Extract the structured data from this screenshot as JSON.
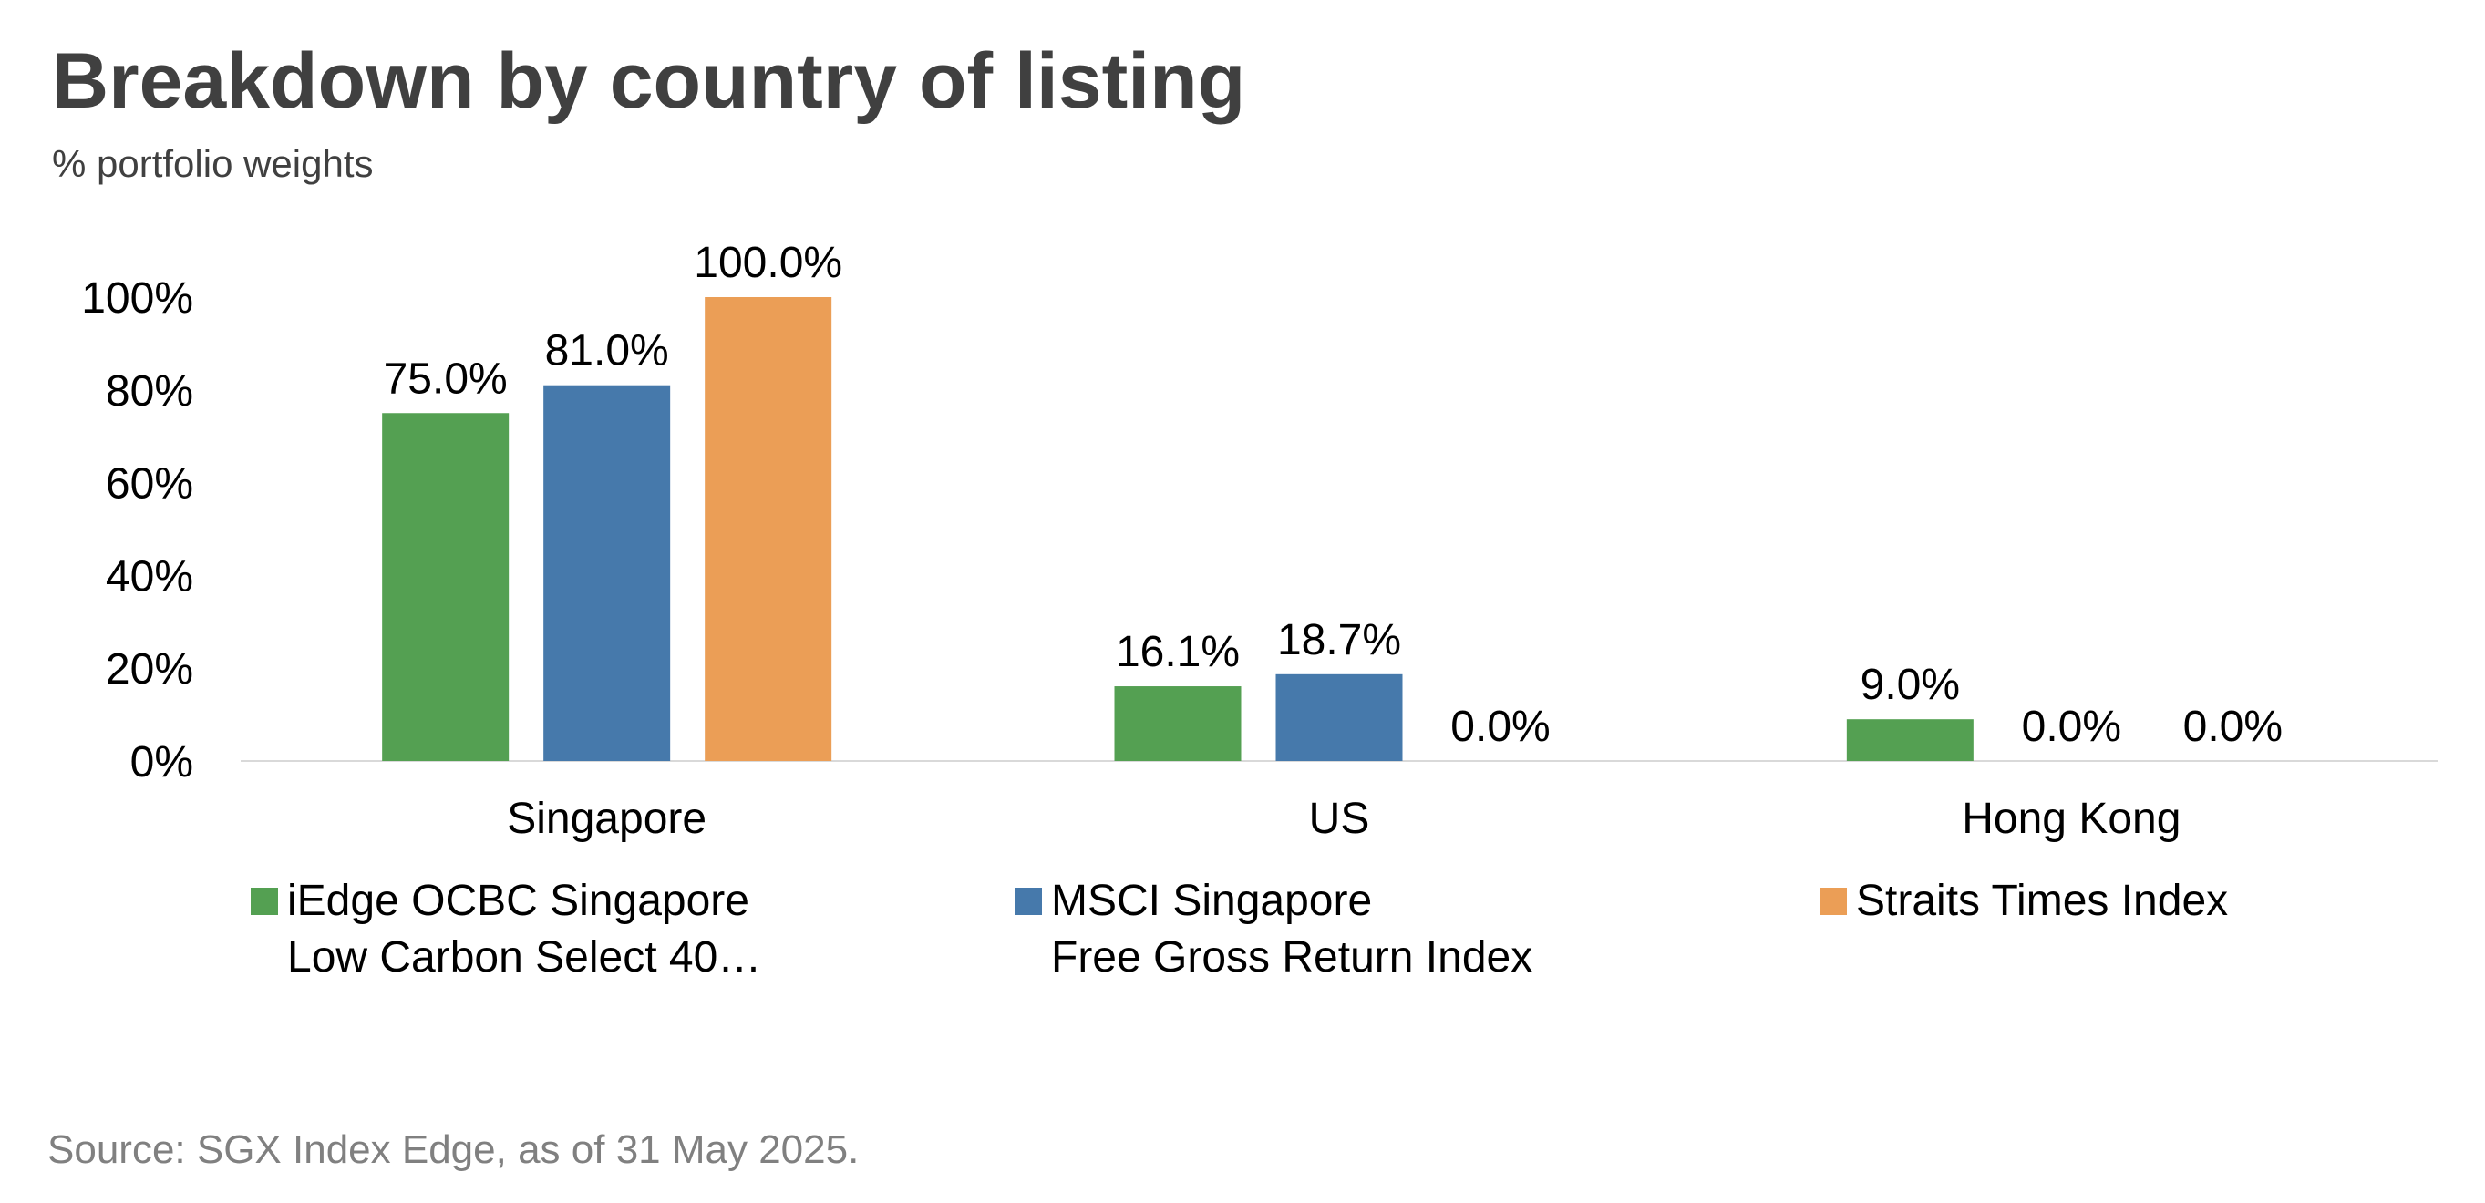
{
  "chart_data": {
    "type": "bar",
    "title": "Breakdown by country of listing",
    "subtitle": "% portfolio weights",
    "source": "Source: SGX Index Edge, as of 31 May 2025.",
    "categories": [
      "Singapore",
      "US",
      "Hong Kong"
    ],
    "series": [
      {
        "name": "iEdge OCBC Singapore\nLow Carbon Select 40…",
        "color": "#54a052",
        "values": [
          75.0,
          16.1,
          9.0
        ],
        "value_labels": [
          "75.0%",
          "16.1%",
          "9.0%"
        ]
      },
      {
        "name": "MSCI Singapore\nFree Gross Return Index",
        "color": "#4679ab",
        "values": [
          81.0,
          18.7,
          0.0
        ],
        "value_labels": [
          "81.0%",
          "18.7%",
          "0.0%"
        ]
      },
      {
        "name": "Straits Times Index",
        "color": "#eb9e56",
        "values": [
          100.0,
          0.0,
          0.0
        ],
        "value_labels": [
          "100.0%",
          "0.0%",
          "0.0%"
        ]
      }
    ],
    "ylim": [
      0,
      100
    ],
    "yticks": [
      {
        "value": 0,
        "label": "0%"
      },
      {
        "value": 20,
        "label": "20%"
      },
      {
        "value": 40,
        "label": "40%"
      },
      {
        "value": 60,
        "label": "60%"
      },
      {
        "value": 80,
        "label": "80%"
      },
      {
        "value": 100,
        "label": "100%"
      }
    ],
    "grid": false,
    "legend": "bottom"
  }
}
